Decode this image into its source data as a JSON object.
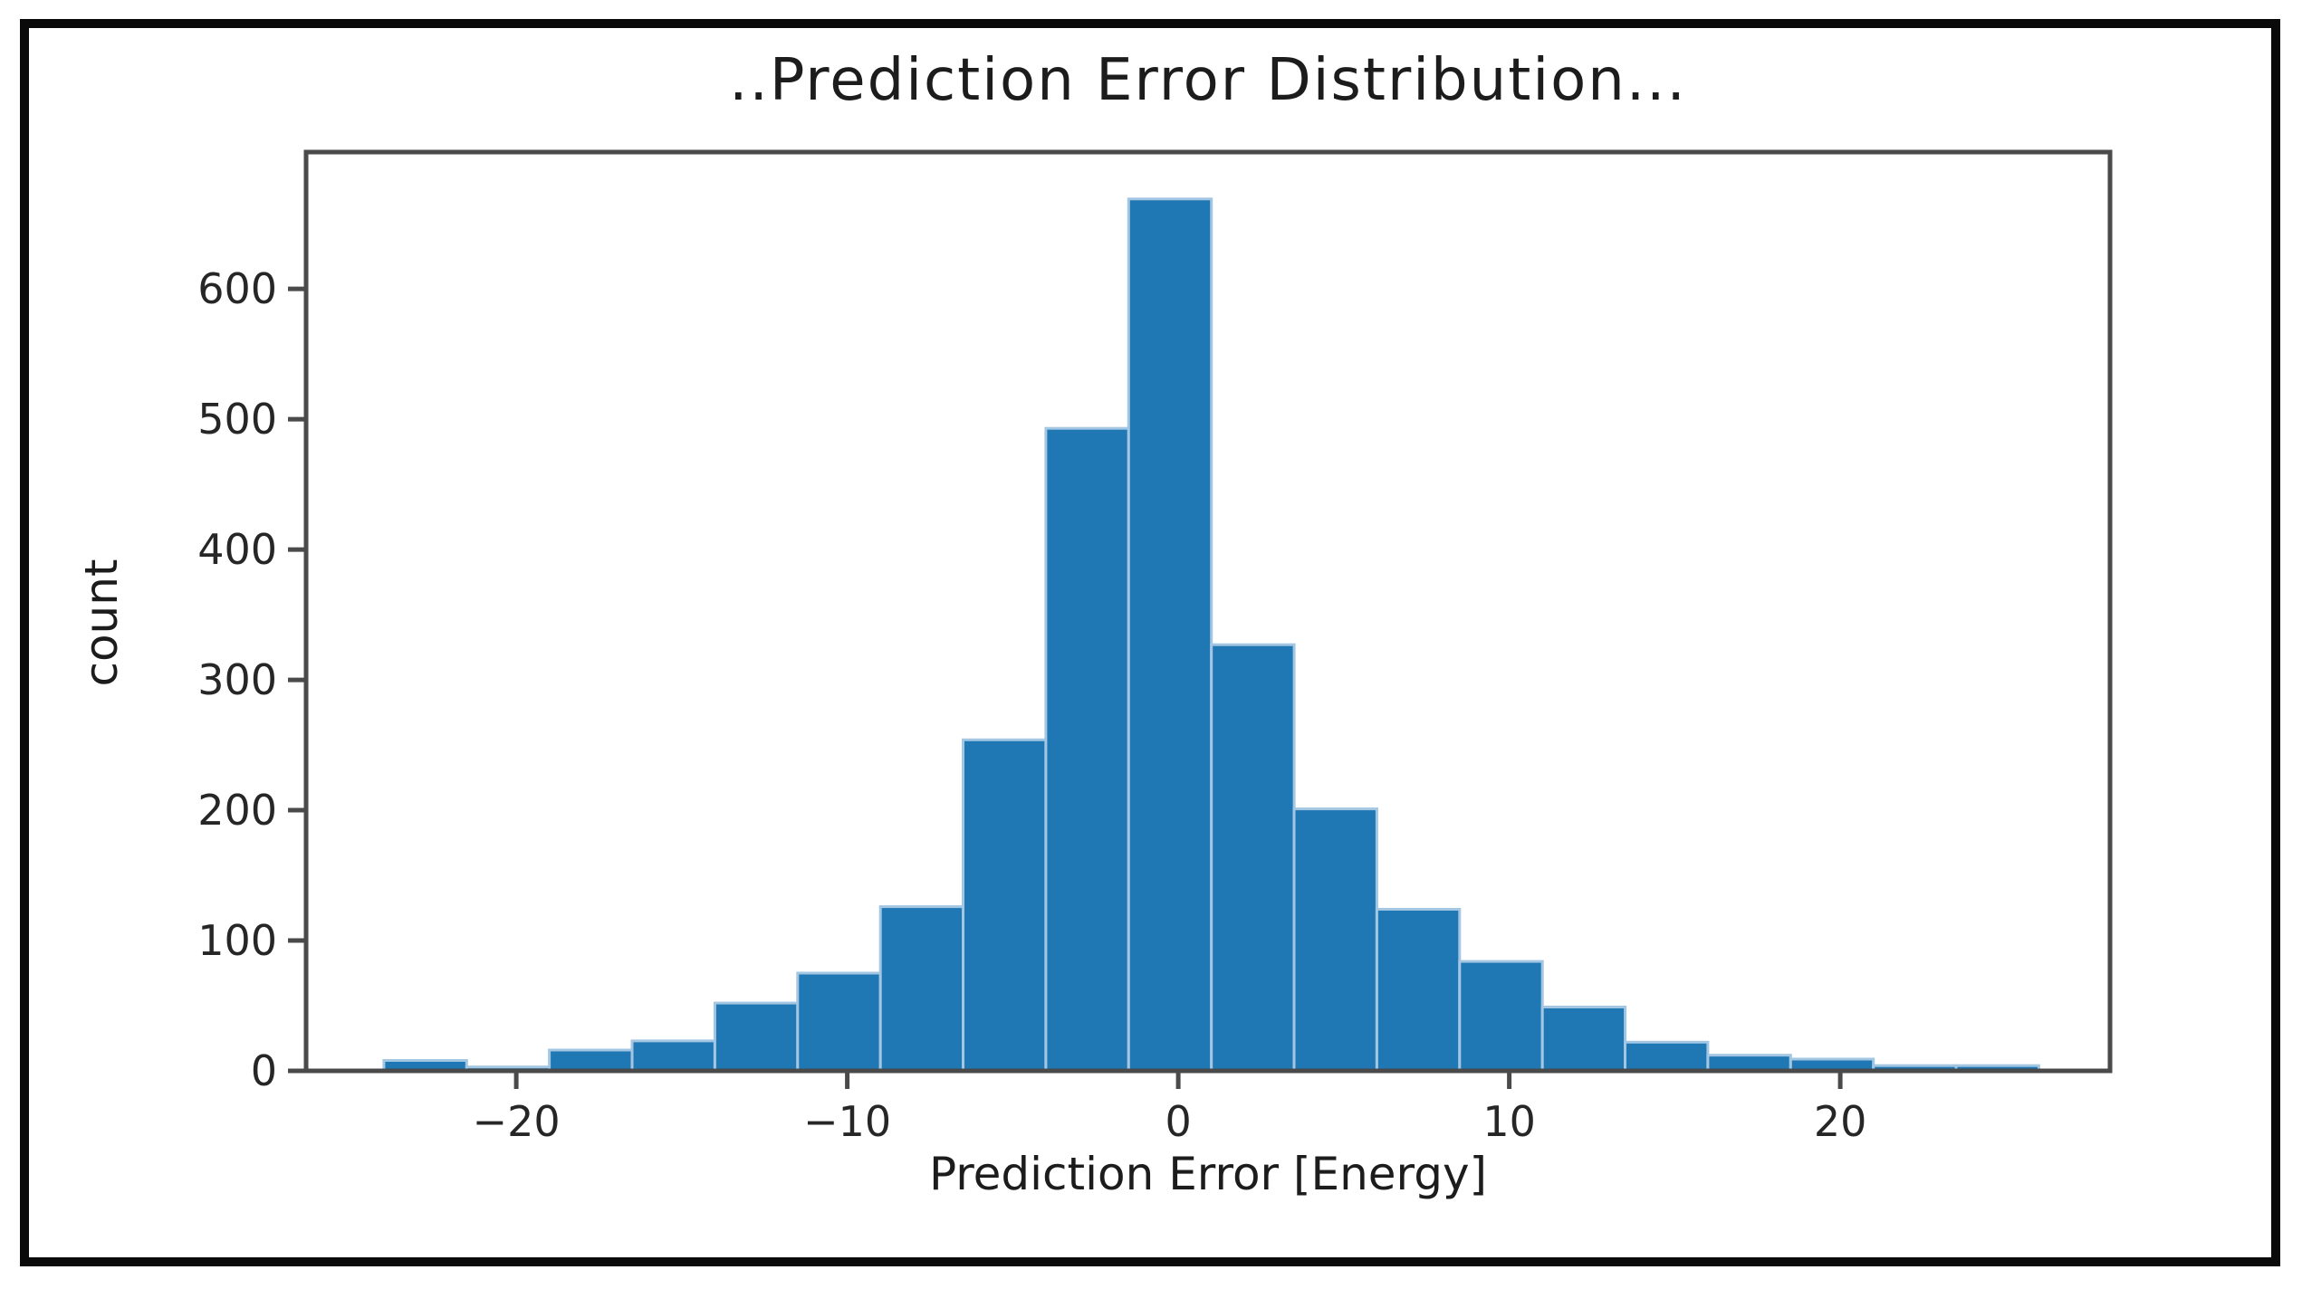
{
  "figure": {
    "title": "..Prediction Error Distribution...",
    "xlabel": "Prediction Error [Energy]",
    "ylabel": "count"
  },
  "chart_data": {
    "type": "bar",
    "subtype": "histogram",
    "title": "..Prediction Error Distribution...",
    "xlabel": "Prediction Error [Energy]",
    "ylabel": "count",
    "bin_edges": [
      -24,
      -21.5,
      -19,
      -16.5,
      -14,
      -11.5,
      -9,
      -6.5,
      -4,
      -1.5,
      1,
      3.5,
      6,
      8.5,
      11,
      13.5,
      16,
      18.5,
      21,
      23.5,
      26
    ],
    "counts": [
      8,
      3,
      16,
      23,
      52,
      75,
      126,
      254,
      493,
      669,
      327,
      201,
      124,
      84,
      49,
      22,
      12,
      9,
      4,
      4
    ],
    "xlim": [
      -26.35,
      28.15
    ],
    "ylim": [
      0,
      705
    ],
    "x_ticks": [
      -20,
      -10,
      0,
      10,
      20
    ],
    "x_tick_labels": [
      "−20",
      "−10",
      "0",
      "10",
      "20"
    ],
    "y_ticks": [
      0,
      100,
      200,
      300,
      400,
      500,
      600
    ],
    "y_tick_labels": [
      "0",
      "100",
      "200",
      "300",
      "400",
      "500",
      "600"
    ],
    "grid": false,
    "legend": null,
    "colors": {
      "bar_fill": "#1f77b4",
      "bar_edge_halo": "#a3c6e3",
      "spine": "#4a4a4a",
      "tick_text": "#262626",
      "title_text": "#1c1c1c",
      "frame_border": "#0a0a0a",
      "background": "#ffffff"
    }
  }
}
